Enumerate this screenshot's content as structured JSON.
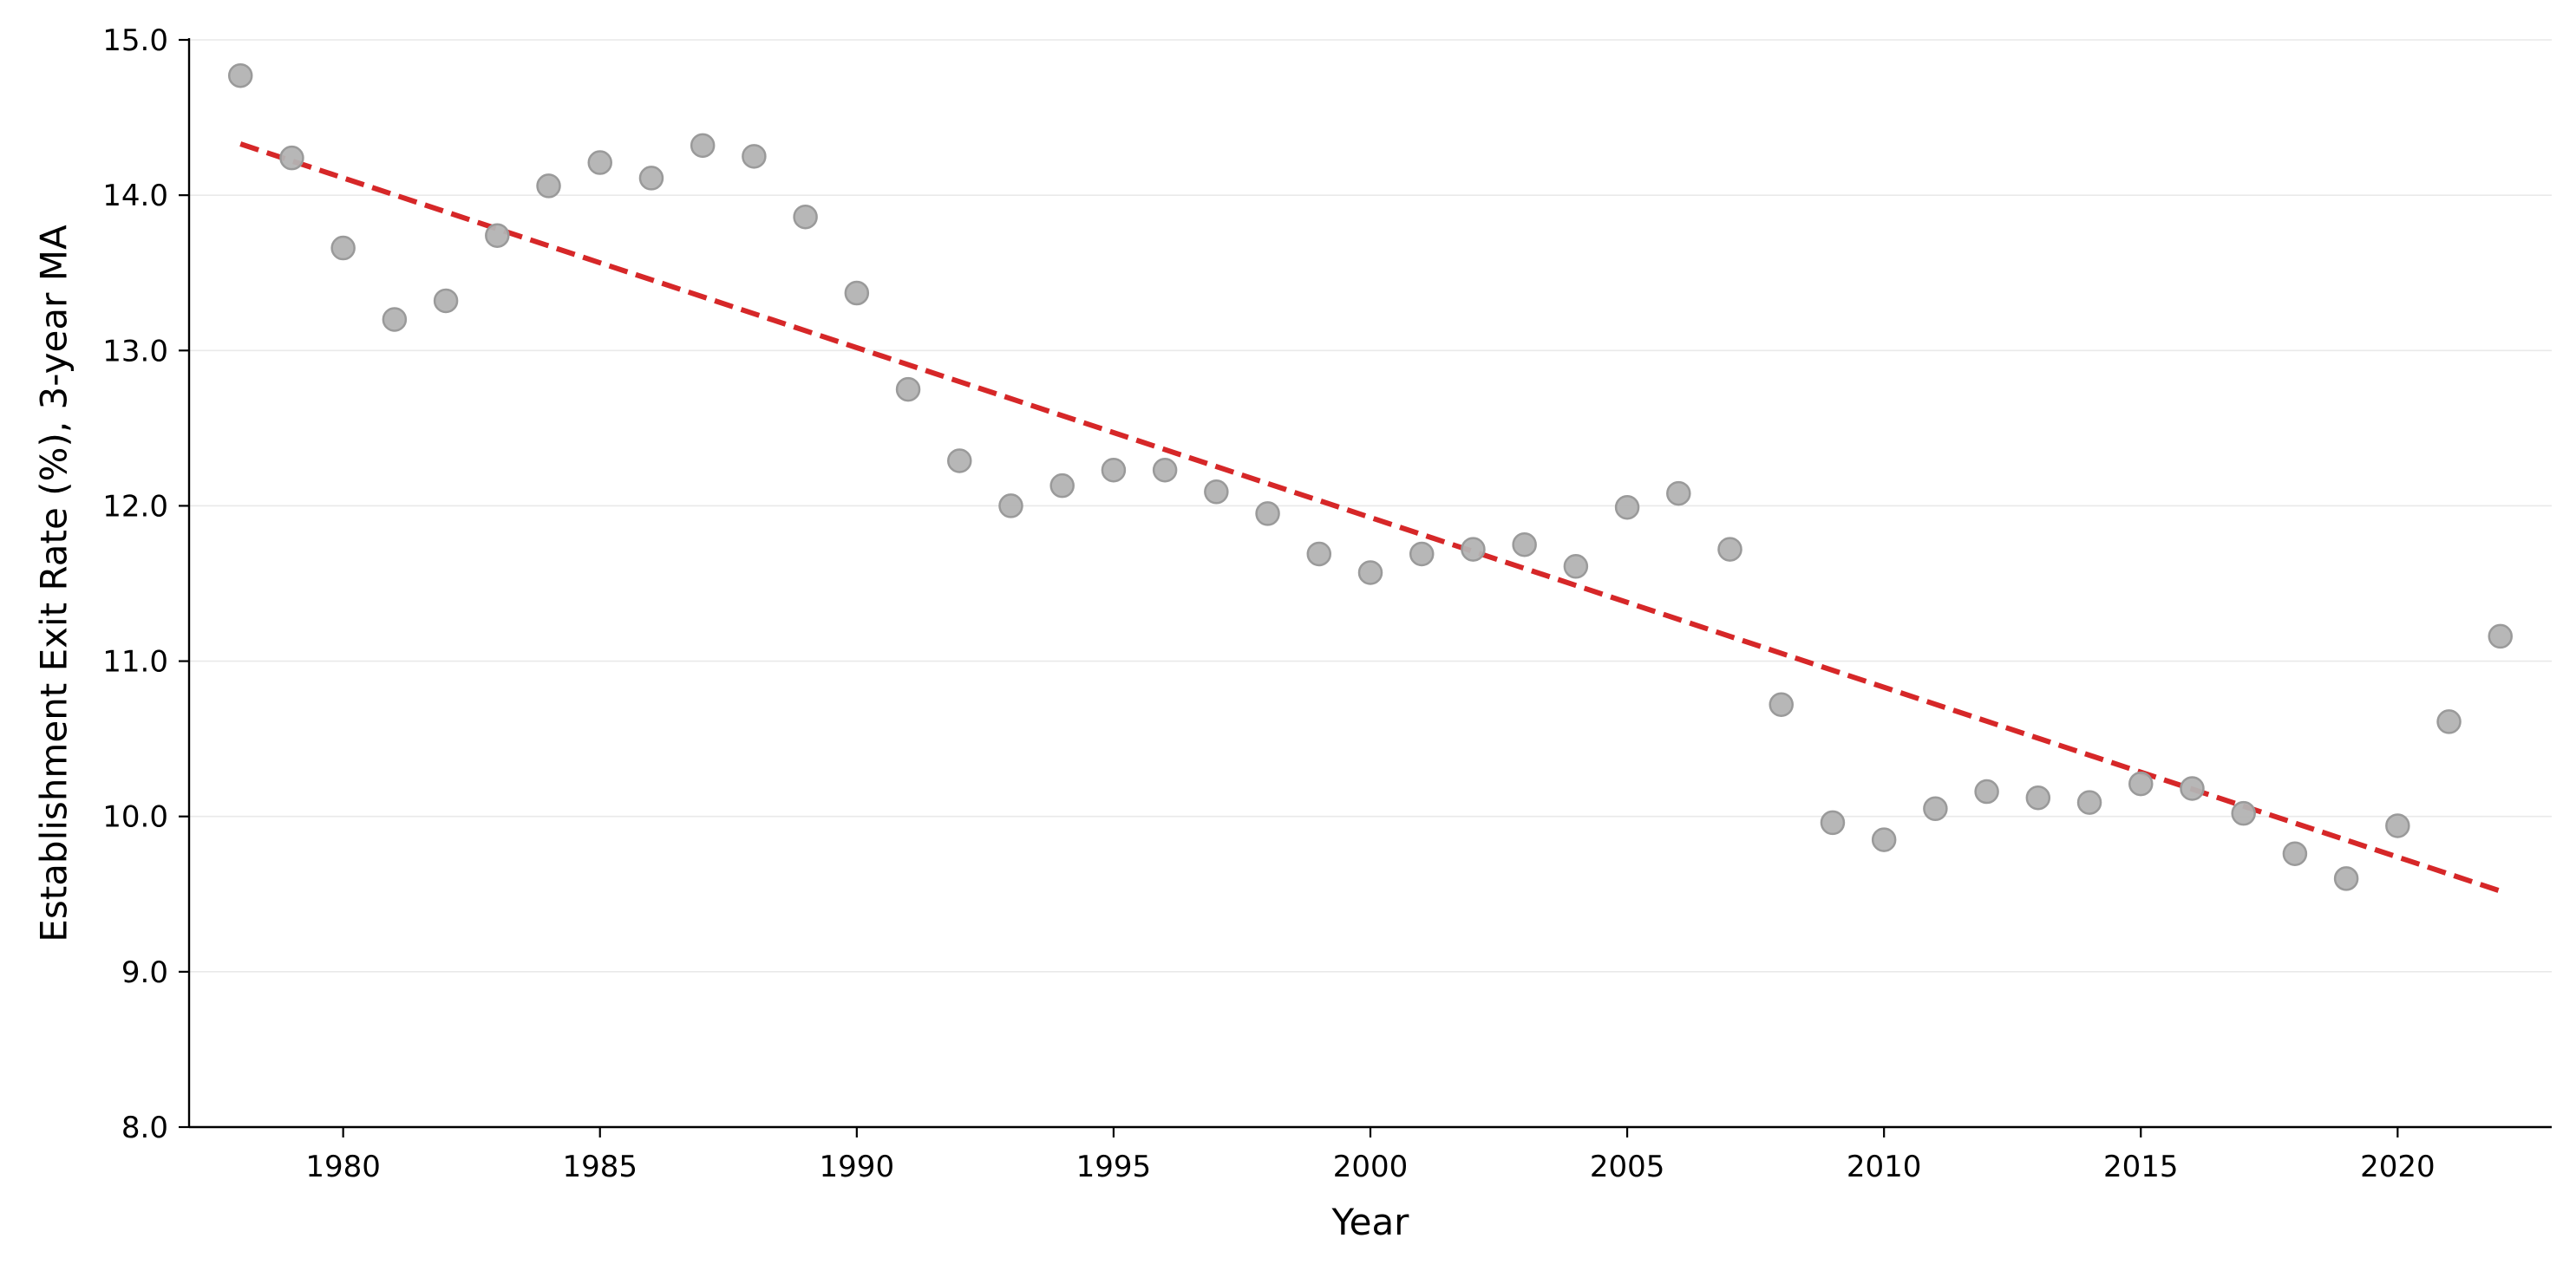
{
  "chart_data": {
    "type": "scatter",
    "title": "",
    "xlabel": "Year",
    "ylabel": "Establishment Exit Rate (%), 3-year MA",
    "xlim": [
      1977,
      2023
    ],
    "ylim": [
      8.0,
      15.0
    ],
    "xticks": [
      1980,
      1985,
      1990,
      1995,
      2000,
      2005,
      2010,
      2015,
      2020
    ],
    "yticks": [
      8.0,
      9.0,
      10.0,
      11.0,
      12.0,
      13.0,
      14.0,
      15.0
    ],
    "grid": "horizontal",
    "point_color": "#b3b3b3",
    "trend_color": "#d62728",
    "x": [
      1978,
      1979,
      1980,
      1981,
      1982,
      1983,
      1984,
      1985,
      1986,
      1987,
      1988,
      1989,
      1990,
      1991,
      1992,
      1993,
      1994,
      1995,
      1996,
      1997,
      1998,
      1999,
      2000,
      2001,
      2002,
      2003,
      2004,
      2005,
      2006,
      2007,
      2008,
      2009,
      2010,
      2011,
      2012,
      2013,
      2014,
      2015,
      2016,
      2017,
      2018,
      2019,
      2020,
      2021,
      2022
    ],
    "y": [
      14.77,
      14.24,
      13.66,
      13.2,
      13.32,
      13.74,
      14.06,
      14.21,
      14.11,
      14.32,
      14.25,
      13.86,
      13.37,
      12.75,
      12.29,
      12.0,
      12.13,
      12.23,
      12.23,
      12.09,
      11.95,
      11.69,
      11.57,
      11.69,
      11.72,
      11.75,
      11.61,
      11.99,
      12.08,
      11.72,
      10.72,
      9.96,
      9.85,
      10.05,
      10.16,
      10.12,
      10.09,
      10.21,
      10.18,
      10.02,
      9.76,
      9.6,
      9.94,
      10.61,
      11.16
    ],
    "trendline": {
      "x": [
        1978,
        2022
      ],
      "y": [
        14.33,
        9.52
      ]
    }
  }
}
